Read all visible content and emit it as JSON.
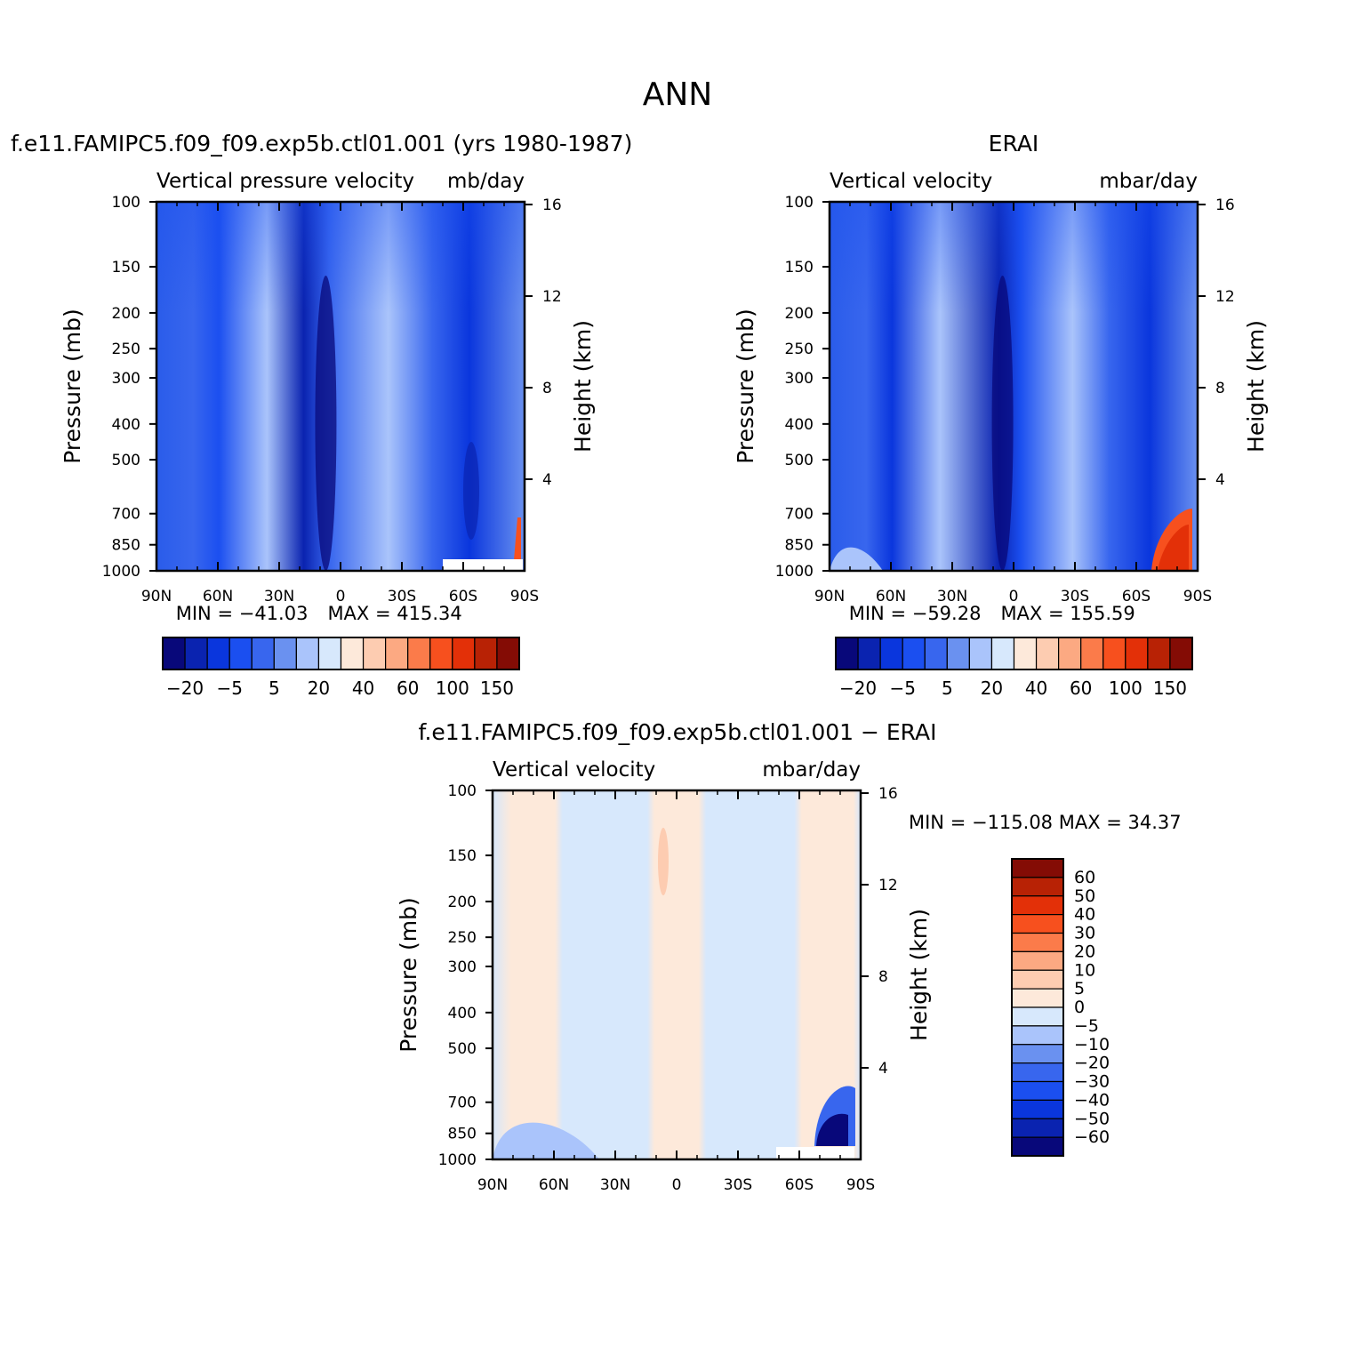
{
  "figure": {
    "title": "ANN"
  },
  "colors": {
    "cmap": [
      "#08087a",
      "#0a23b0",
      "#0a36dd",
      "#1b4ff0",
      "#3866ee",
      "#6a91f0",
      "#aac4fb",
      "#d7e8fc",
      "#fde9da",
      "#fdccb1",
      "#fca982",
      "#fb7b4a",
      "#f7501e",
      "#e33008",
      "#b82205",
      "#840c05"
    ],
    "diff_cmap": [
      "#08087a",
      "#0a23b0",
      "#0a36dd",
      "#1b4ff0",
      "#3866ee",
      "#6a91f0",
      "#aac4fb",
      "#d7e8fc",
      "#fde9da",
      "#fdccb1",
      "#fca982",
      "#fb7b4a",
      "#f7501e",
      "#e33008",
      "#b82205",
      "#840c05"
    ]
  },
  "chart_data": [
    {
      "id": "model",
      "type": "heatmap",
      "title": "f.e11.FAMIPC5.f09_f09.exp5b.ctl01.001 (yrs 1980-1987)",
      "left_label": "Vertical pressure velocity",
      "right_label": "mb/day",
      "ylabel": "Pressure (mb)",
      "y2label": "Height (km)",
      "xticks": [
        "90N",
        "60N",
        "30N",
        "0",
        "30S",
        "60S",
        "90S"
      ],
      "yticks": [
        "100",
        "150",
        "200",
        "250",
        "300",
        "400",
        "500",
        "700",
        "850",
        "1000"
      ],
      "y2ticks": [
        "16",
        "12",
        "8",
        "4"
      ],
      "min_label": "MIN = −41.03",
      "max_label": "MAX = 415.34",
      "min": -41.03,
      "max": 415.34,
      "colorbar_labels": [
        "−20",
        "−5",
        "5",
        "20",
        "40",
        "60",
        "100",
        "150"
      ]
    },
    {
      "id": "obs",
      "type": "heatmap",
      "title": "ERAI",
      "left_label": "Vertical velocity",
      "right_label": "mbar/day",
      "ylabel": "Pressure (mb)",
      "y2label": "Height (km)",
      "xticks": [
        "90N",
        "60N",
        "30N",
        "0",
        "30S",
        "60S",
        "90S"
      ],
      "yticks": [
        "100",
        "150",
        "200",
        "250",
        "300",
        "400",
        "500",
        "700",
        "850",
        "1000"
      ],
      "y2ticks": [
        "16",
        "12",
        "8",
        "4"
      ],
      "min_label": "MIN = −59.28",
      "max_label": "MAX = 155.59",
      "min": -59.28,
      "max": 155.59,
      "colorbar_labels": [
        "−20",
        "−5",
        "5",
        "20",
        "40",
        "60",
        "100",
        "150"
      ]
    },
    {
      "id": "diff",
      "type": "heatmap",
      "title": "f.e11.FAMIPC5.f09_f09.exp5b.ctl01.001 − ERAI",
      "left_label": "Vertical velocity",
      "right_label": "mbar/day",
      "ylabel": "Pressure (mb)",
      "y2label": "Height (km)",
      "xticks": [
        "90N",
        "60N",
        "30N",
        "0",
        "30S",
        "60S",
        "90S"
      ],
      "yticks": [
        "100",
        "150",
        "200",
        "250",
        "300",
        "400",
        "500",
        "700",
        "850",
        "1000"
      ],
      "y2ticks": [
        "16",
        "12",
        "8",
        "4"
      ],
      "minmax_label": "MIN = −115.08   MAX =   34.37",
      "min": -115.08,
      "max": 34.37,
      "colorbar_labels": [
        "60",
        "50",
        "40",
        "30",
        "20",
        "10",
        "5",
        "0",
        "−5",
        "−10",
        "−20",
        "−30",
        "−40",
        "−50",
        "−60"
      ]
    }
  ]
}
